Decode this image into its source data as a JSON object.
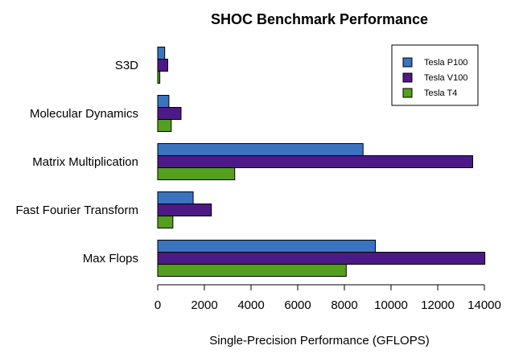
{
  "chart_data": {
    "type": "bar",
    "orientation": "horizontal",
    "title": "SHOC Benchmark Performance",
    "xlabel": "Single-Precision Performance (GFLOPS)",
    "ylabel": "",
    "xlim": [
      0,
      14000
    ],
    "xticks": [
      0,
      2000,
      4000,
      6000,
      8000,
      10000,
      12000,
      14000
    ],
    "categories": [
      "S3D",
      "Molecular Dynamics",
      "Matrix Multiplication",
      "Fast Fourier Transform",
      "Max Flops"
    ],
    "series": [
      {
        "name": "Tesla P100",
        "color": "#3a74c1",
        "values": [
          300,
          480,
          8800,
          1520,
          9330
        ]
      },
      {
        "name": "Tesla V100",
        "color": "#4b1a86",
        "values": [
          430,
          1000,
          13500,
          2300,
          14020
        ]
      },
      {
        "name": "Tesla T4",
        "color": "#54a01e",
        "values": [
          90,
          580,
          3300,
          650,
          8080
        ]
      }
    ],
    "legend_position": "top-right",
    "grid": false
  }
}
